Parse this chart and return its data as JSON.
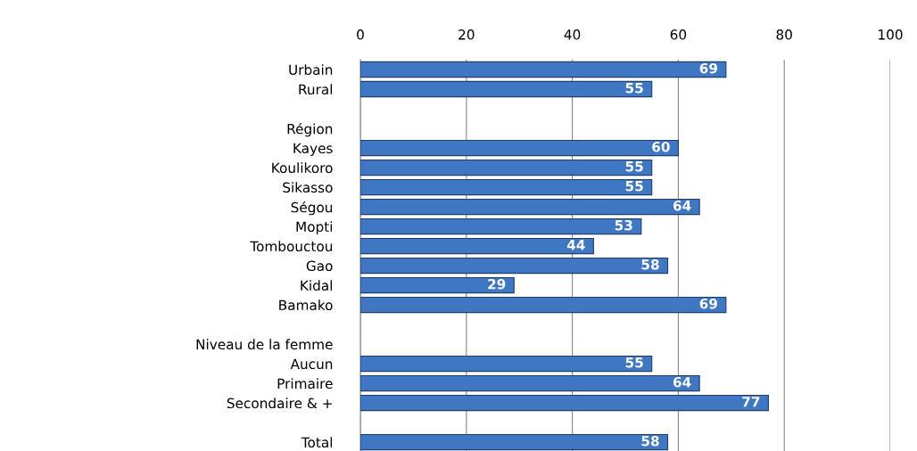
{
  "chart_data": {
    "type": "bar",
    "orientation": "horizontal",
    "categories": [
      "Urbain",
      "Rural",
      null,
      "Région",
      "Kayes",
      "Koulikoro",
      "Sikasso",
      "Ségou",
      "Mopti",
      "Tombouctou",
      "Gao",
      "Kidal",
      "Bamako",
      null,
      "Niveau de la femme",
      "Aucun",
      "Primaire",
      "Secondaire & +",
      null,
      "Total"
    ],
    "values": [
      69,
      55,
      null,
      null,
      60,
      55,
      55,
      64,
      53,
      44,
      58,
      29,
      69,
      null,
      null,
      55,
      64,
      77,
      null,
      58
    ],
    "color": "#3f77c2",
    "xlim": [
      0,
      100
    ],
    "xticks": [
      0,
      20,
      40,
      60,
      80,
      100
    ],
    "grid": "x",
    "data_labels": true
  }
}
